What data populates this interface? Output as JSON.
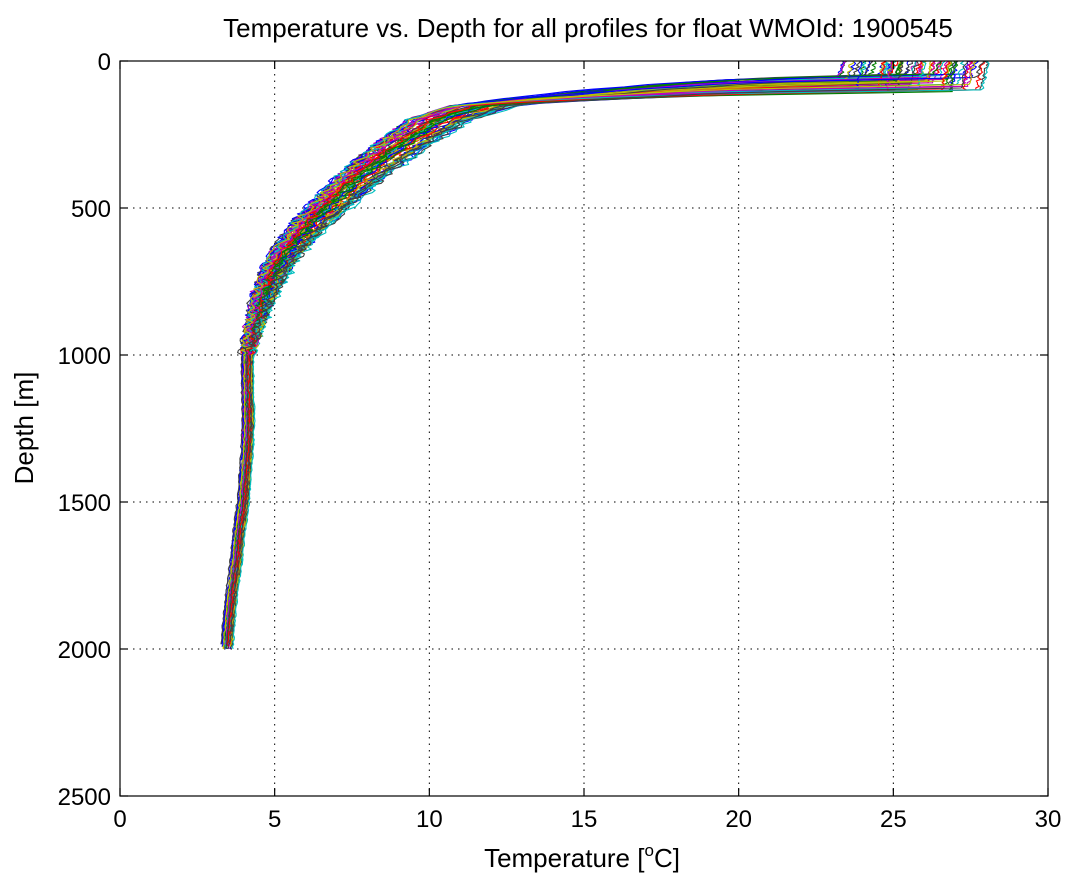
{
  "chart_data": {
    "type": "line",
    "title": "Temperature vs. Depth for all profiles for float WMOId: 1900545",
    "xlabel": "Temperature [",
    "xlabel_sup": "o",
    "xlabel_end": "C]",
    "ylabel": "Depth [m]",
    "xlim": [
      0,
      30
    ],
    "ylim": [
      0,
      2500
    ],
    "y_reversed": true,
    "grid": true,
    "xticks": [
      0,
      5,
      10,
      15,
      20,
      25,
      30
    ],
    "yticks": [
      0,
      500,
      1000,
      1500,
      2000,
      2500
    ],
    "xtick_labels": [
      "0",
      "5",
      "10",
      "15",
      "20",
      "25",
      "30"
    ],
    "ytick_labels": [
      "0",
      "500",
      "1000",
      "1500",
      "2000",
      "2500"
    ],
    "profile_count": 70,
    "series_colors": [
      "#0000ff",
      "#008000",
      "#ff0000",
      "#00bfbf",
      "#bf00bf",
      "#bfbf00",
      "#404040"
    ],
    "mean_profile": {
      "depth": [
        0,
        25,
        50,
        75,
        100,
        125,
        150,
        175,
        200,
        250,
        300,
        350,
        400,
        450,
        500,
        550,
        600,
        650,
        700,
        750,
        800,
        850,
        900,
        950,
        1000,
        1100,
        1200,
        1300,
        1400,
        1500,
        1600,
        1700,
        1800,
        1900,
        2000
      ],
      "temperature": [
        27.2,
        27.0,
        26.0,
        18.0,
        14.5,
        12.8,
        11.8,
        11.0,
        10.3,
        9.6,
        8.9,
        8.3,
        7.7,
        7.2,
        6.7,
        6.2,
        5.8,
        5.4,
        5.1,
        4.85,
        4.65,
        4.5,
        4.35,
        4.22,
        4.12,
        4.12,
        4.15,
        4.12,
        4.05,
        3.98,
        3.85,
        3.75,
        3.62,
        3.52,
        3.45
      ]
    }
  }
}
